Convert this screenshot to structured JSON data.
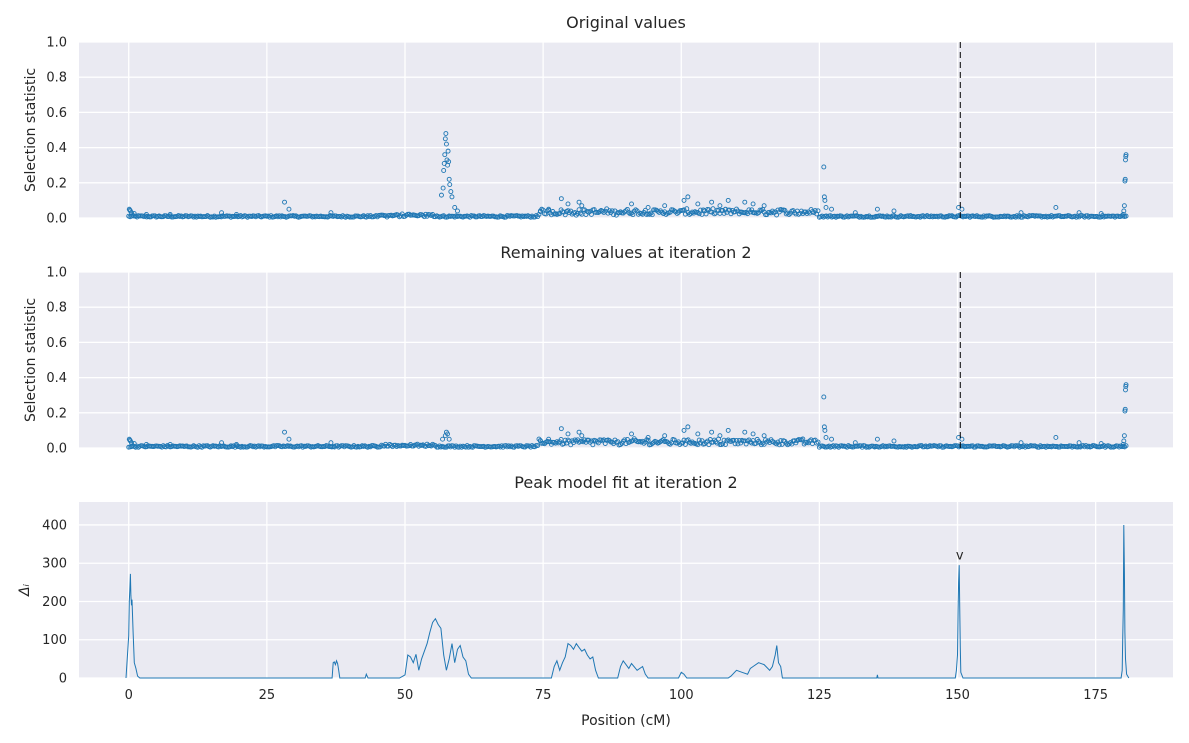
{
  "chart_data": [
    {
      "type": "scatter",
      "title": "Original values",
      "ylabel": "Selection statistic",
      "xlabel": "",
      "xlim": [
        -9,
        189
      ],
      "ylim": [
        0,
        1
      ],
      "yticks": [
        "0.0",
        "0.2",
        "0.4",
        "0.6",
        "0.8",
        "1.0"
      ],
      "xtick_values": [
        0,
        25,
        50,
        75,
        100,
        125,
        150,
        175
      ],
      "show_xtick_labels": false,
      "vline_x": 150.5,
      "color": "#1f77b4",
      "peaks": [
        [
          0.1,
          0.05
        ],
        [
          0.2,
          0.045
        ],
        [
          0.3,
          0.04
        ],
        [
          0.5,
          0.03
        ],
        [
          1.0,
          0.025
        ],
        [
          3.2,
          0.02
        ],
        [
          7.5,
          0.02
        ],
        [
          16.8,
          0.03
        ],
        [
          19.5,
          0.02
        ],
        [
          28.2,
          0.09
        ],
        [
          29.0,
          0.05
        ],
        [
          36.6,
          0.03
        ],
        [
          56.6,
          0.13
        ],
        [
          56.9,
          0.17
        ],
        [
          57.0,
          0.27
        ],
        [
          57.1,
          0.31
        ],
        [
          57.2,
          0.36
        ],
        [
          57.3,
          0.45
        ],
        [
          57.4,
          0.48
        ],
        [
          57.5,
          0.42
        ],
        [
          57.6,
          0.33
        ],
        [
          57.7,
          0.3
        ],
        [
          57.8,
          0.38
        ],
        [
          57.9,
          0.32
        ],
        [
          58.0,
          0.22
        ],
        [
          58.1,
          0.19
        ],
        [
          58.3,
          0.15
        ],
        [
          58.5,
          0.12
        ],
        [
          59.0,
          0.06
        ],
        [
          59.5,
          0.04
        ],
        [
          74.5,
          0.04
        ],
        [
          76.0,
          0.05
        ],
        [
          78.3,
          0.11
        ],
        [
          79.5,
          0.08
        ],
        [
          81.5,
          0.09
        ],
        [
          82.0,
          0.07
        ],
        [
          91.0,
          0.08
        ],
        [
          94.0,
          0.06
        ],
        [
          97.0,
          0.07
        ],
        [
          100.5,
          0.1
        ],
        [
          101.2,
          0.12
        ],
        [
          103.0,
          0.08
        ],
        [
          105.5,
          0.09
        ],
        [
          107.0,
          0.07
        ],
        [
          108.5,
          0.1
        ],
        [
          111.5,
          0.09
        ],
        [
          113.0,
          0.08
        ],
        [
          115.0,
          0.07
        ],
        [
          125.8,
          0.29
        ],
        [
          125.9,
          0.12
        ],
        [
          126.0,
          0.1
        ],
        [
          126.2,
          0.06
        ],
        [
          127.2,
          0.05
        ],
        [
          131.5,
          0.03
        ],
        [
          135.5,
          0.05
        ],
        [
          138.5,
          0.04
        ],
        [
          150.2,
          0.06
        ],
        [
          150.8,
          0.05
        ],
        [
          161.5,
          0.03
        ],
        [
          167.8,
          0.06
        ],
        [
          172.0,
          0.03
        ],
        [
          176.0,
          0.025
        ],
        [
          180.0,
          0.02
        ],
        [
          180.1,
          0.04
        ],
        [
          180.2,
          0.07
        ],
        [
          180.3,
          0.21
        ],
        [
          180.35,
          0.22
        ],
        [
          180.4,
          0.33
        ],
        [
          180.45,
          0.35
        ],
        [
          180.5,
          0.36
        ]
      ]
    },
    {
      "type": "scatter",
      "title": "Remaining values at iteration 2",
      "ylabel": "Selection statistic",
      "xlabel": "",
      "xlim": [
        -9,
        189
      ],
      "ylim": [
        0,
        1
      ],
      "yticks": [
        "0.0",
        "0.2",
        "0.4",
        "0.6",
        "0.8",
        "1.0"
      ],
      "xtick_values": [
        0,
        25,
        50,
        75,
        100,
        125,
        150,
        175
      ],
      "show_xtick_labels": false,
      "vline_x": 150.5,
      "color": "#1f77b4",
      "peaks": [
        [
          0.1,
          0.05
        ],
        [
          0.2,
          0.045
        ],
        [
          0.3,
          0.04
        ],
        [
          0.5,
          0.03
        ],
        [
          1.0,
          0.025
        ],
        [
          3.2,
          0.02
        ],
        [
          7.5,
          0.02
        ],
        [
          16.8,
          0.03
        ],
        [
          19.5,
          0.02
        ],
        [
          28.2,
          0.09
        ],
        [
          29.0,
          0.05
        ],
        [
          36.6,
          0.03
        ],
        [
          56.8,
          0.05
        ],
        [
          57.3,
          0.07
        ],
        [
          57.5,
          0.09
        ],
        [
          57.7,
          0.08
        ],
        [
          58.0,
          0.05
        ],
        [
          74.5,
          0.04
        ],
        [
          76.0,
          0.05
        ],
        [
          78.3,
          0.11
        ],
        [
          79.5,
          0.08
        ],
        [
          81.5,
          0.09
        ],
        [
          82.0,
          0.07
        ],
        [
          91.0,
          0.08
        ],
        [
          94.0,
          0.06
        ],
        [
          97.0,
          0.07
        ],
        [
          100.5,
          0.1
        ],
        [
          101.2,
          0.12
        ],
        [
          103.0,
          0.08
        ],
        [
          105.5,
          0.09
        ],
        [
          107.0,
          0.07
        ],
        [
          108.5,
          0.1
        ],
        [
          111.5,
          0.09
        ],
        [
          113.0,
          0.08
        ],
        [
          115.0,
          0.07
        ],
        [
          125.8,
          0.29
        ],
        [
          125.9,
          0.12
        ],
        [
          126.0,
          0.1
        ],
        [
          126.2,
          0.06
        ],
        [
          127.2,
          0.05
        ],
        [
          131.5,
          0.03
        ],
        [
          135.5,
          0.05
        ],
        [
          138.5,
          0.04
        ],
        [
          150.2,
          0.06
        ],
        [
          150.8,
          0.05
        ],
        [
          161.5,
          0.03
        ],
        [
          167.8,
          0.06
        ],
        [
          172.0,
          0.03
        ],
        [
          176.0,
          0.025
        ],
        [
          180.0,
          0.02
        ],
        [
          180.1,
          0.04
        ],
        [
          180.2,
          0.07
        ],
        [
          180.3,
          0.21
        ],
        [
          180.35,
          0.22
        ],
        [
          180.4,
          0.33
        ],
        [
          180.45,
          0.35
        ],
        [
          180.5,
          0.36
        ]
      ]
    },
    {
      "type": "line",
      "title": "Peak model fit at iteration 2",
      "ylabel": "Δᵢ",
      "xlabel": "Position (cM)",
      "xlim": [
        -9,
        189
      ],
      "ylim": [
        0,
        460
      ],
      "yticks": [
        "0",
        "100",
        "200",
        "300",
        "400"
      ],
      "ytick_values": [
        0,
        100,
        200,
        300,
        400
      ],
      "xtick_values": [
        0,
        25,
        50,
        75,
        100,
        125,
        150,
        175
      ],
      "xtick_labels": [
        "0",
        "25",
        "50",
        "75",
        "100",
        "125",
        "150",
        "175"
      ],
      "show_xtick_labels": true,
      "marker": {
        "x": 150.4,
        "y": 310,
        "label": "v"
      },
      "color": "#1f77b4",
      "x": [
        -0.5,
        0.0,
        0.1,
        0.2,
        0.3,
        0.4,
        0.5,
        0.6,
        0.8,
        1.0,
        1.3,
        1.6,
        2.0,
        36.8,
        37.0,
        37.2,
        37.4,
        37.6,
        37.8,
        38.0,
        38.2,
        42.8,
        43.0,
        43.3,
        49.0,
        50.0,
        50.5,
        51.0,
        51.5,
        52.0,
        52.5,
        53.0,
        54.0,
        54.5,
        55.0,
        55.5,
        56.0,
        56.5,
        57.0,
        57.5,
        58.0,
        58.5,
        59.0,
        59.5,
        60.0,
        60.5,
        61.0,
        61.5,
        62.0,
        76.5,
        77.0,
        77.5,
        78.0,
        78.5,
        79.0,
        79.5,
        80.0,
        80.5,
        81.0,
        81.5,
        82.0,
        82.5,
        83.0,
        83.5,
        84.0,
        84.5,
        85.0,
        88.5,
        89.0,
        89.5,
        90.0,
        90.5,
        91.0,
        92.0,
        93.0,
        93.5,
        94.0,
        99.5,
        100.0,
        100.5,
        101.0,
        108.5,
        109.0,
        110.0,
        111.0,
        112.0,
        112.5,
        113.0,
        114.0,
        115.0,
        116.0,
        116.5,
        117.0,
        117.3,
        117.6,
        118.0,
        118.3,
        135.4,
        135.5,
        135.6,
        149.6,
        149.8,
        150.0,
        150.1,
        150.2,
        150.3,
        150.4,
        150.5,
        150.6,
        151.0,
        179.6,
        179.8,
        179.9,
        180.0,
        180.1,
        180.2,
        180.3,
        180.4,
        180.6,
        181.0
      ],
      "y": [
        0,
        110,
        200,
        230,
        272,
        215,
        190,
        205,
        120,
        40,
        25,
        5,
        0,
        0,
        40,
        42,
        35,
        45,
        38,
        20,
        0,
        0,
        10,
        0,
        0,
        8,
        60,
        55,
        40,
        62,
        20,
        50,
        90,
        120,
        145,
        155,
        140,
        130,
        60,
        20,
        50,
        90,
        40,
        75,
        85,
        55,
        45,
        10,
        0,
        0,
        30,
        45,
        20,
        40,
        55,
        90,
        85,
        75,
        90,
        80,
        70,
        75,
        60,
        50,
        55,
        20,
        0,
        0,
        30,
        45,
        35,
        25,
        38,
        20,
        30,
        10,
        0,
        0,
        15,
        10,
        0,
        0,
        5,
        20,
        15,
        10,
        25,
        30,
        40,
        35,
        20,
        30,
        60,
        85,
        40,
        30,
        0,
        0,
        8,
        0,
        0,
        20,
        60,
        180,
        250,
        295,
        190,
        80,
        15,
        0,
        0,
        20,
        100,
        180,
        400,
        280,
        120,
        50,
        10,
        0
      ]
    }
  ]
}
